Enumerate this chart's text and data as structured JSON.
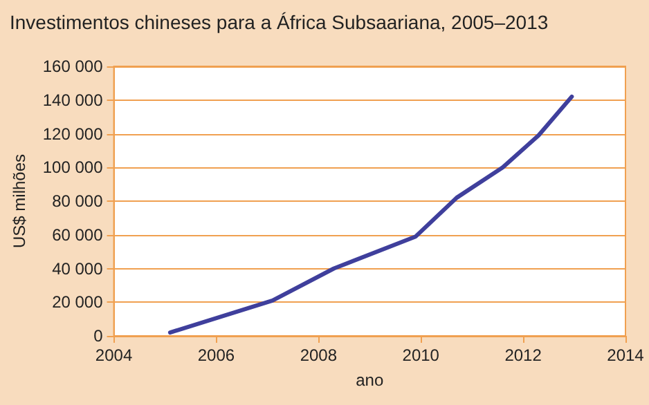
{
  "chart_data": {
    "type": "line",
    "title": "Investimentos chineses para a África Subsaariana, 2005–2013",
    "xlabel": "ano",
    "ylabel": "US$ milhões",
    "series": [
      {
        "color": "#3f3f9c",
        "x": [
          2005.1,
          2007.1,
          2008.3,
          2009.9,
          2010.7,
          2011.6,
          2012.3,
          2012.95
        ],
        "values": [
          2000,
          21000,
          40000,
          59000,
          82000,
          100000,
          119000,
          142000
        ]
      }
    ],
    "xlim": [
      2004,
      2014
    ],
    "xticks": [
      2004,
      2006,
      2008,
      2010,
      2012,
      2014
    ],
    "ylim": [
      0,
      160000
    ],
    "yticks": [
      {
        "value": 0,
        "label": "0"
      },
      {
        "value": 20000,
        "label": "20 000"
      },
      {
        "value": 40000,
        "label": "40 000"
      },
      {
        "value": 60000,
        "label": "60 000"
      },
      {
        "value": 80000,
        "label": "80 000"
      },
      {
        "value": 100000,
        "label": "100 000"
      },
      {
        "value": 120000,
        "label": "120 000"
      },
      {
        "value": 140000,
        "label": "140 000"
      },
      {
        "value": 160000,
        "label": "160 000"
      }
    ],
    "grid": "y",
    "marker": "none",
    "line_style": "solid"
  }
}
